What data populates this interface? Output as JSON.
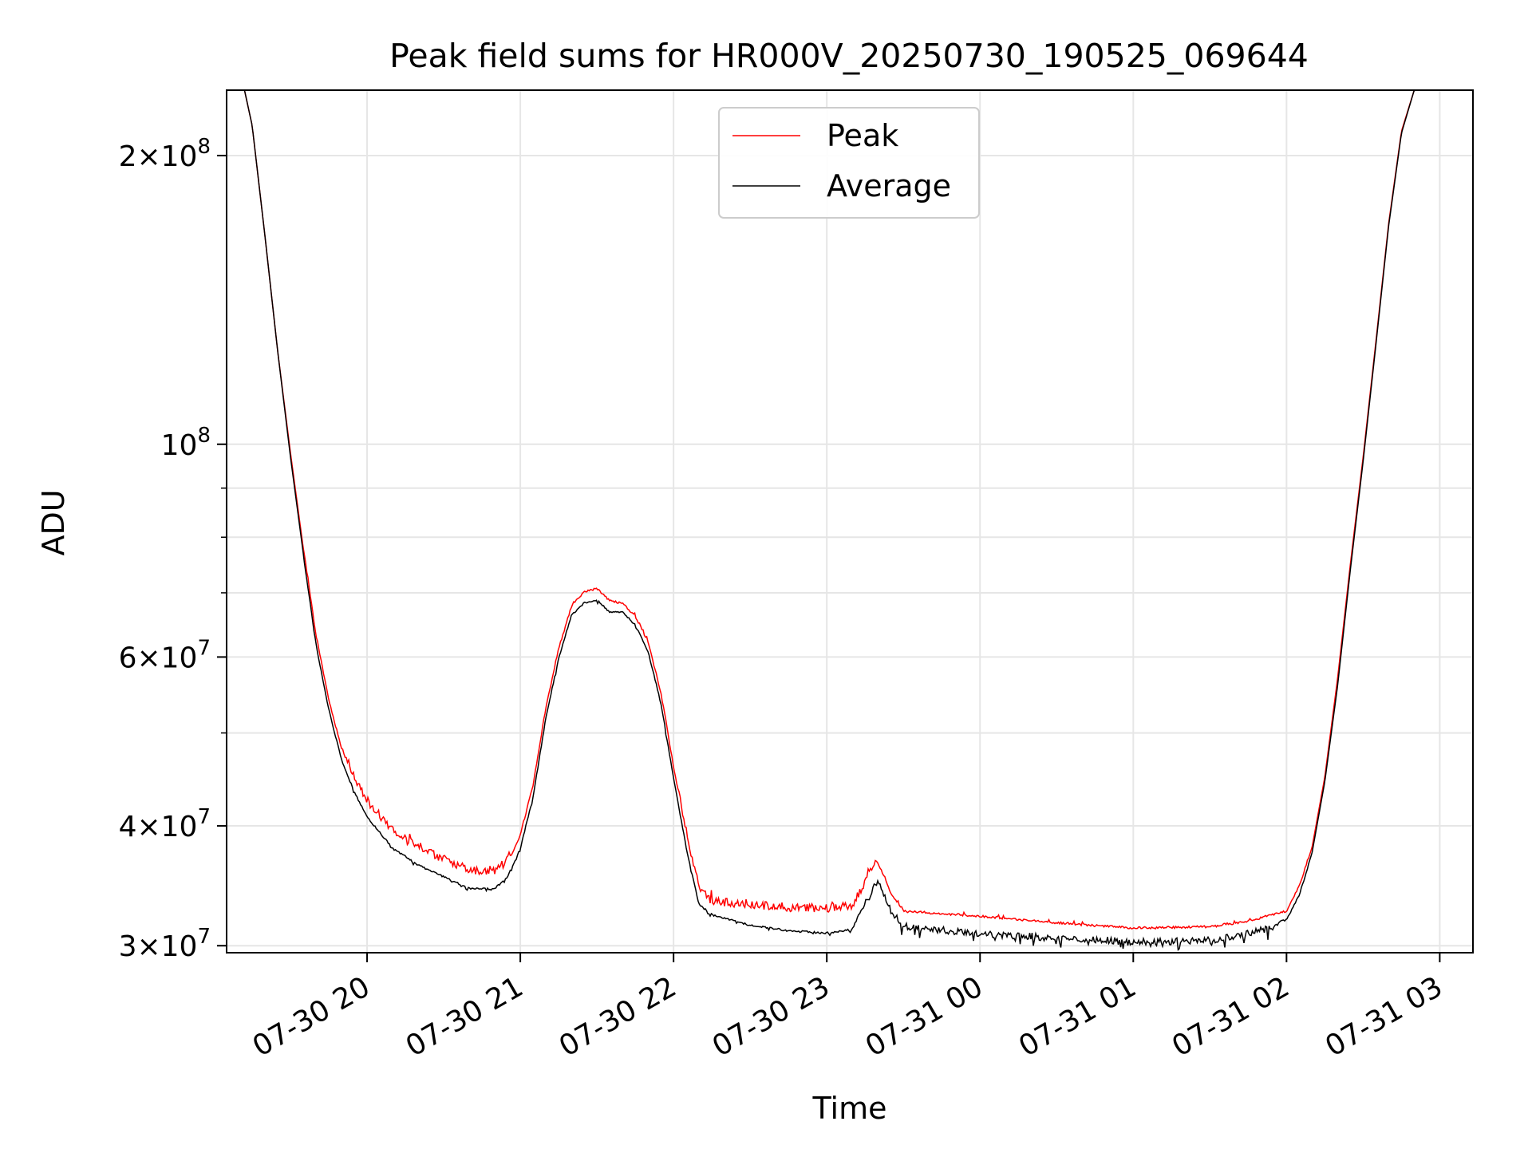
{
  "chart_data": {
    "type": "line",
    "title": "Peak field sums for HR000V_20250730_190525_069644",
    "xlabel": "Time",
    "ylabel": "ADU",
    "y_scale": "log",
    "ylim": [
      29500000,
      234000000
    ],
    "xlim": [
      "2025-07-30 19:05",
      "2025-07-31 03:13"
    ],
    "grid": true,
    "legend": {
      "position": "top-center",
      "entries": [
        "Peak",
        "Average"
      ]
    },
    "x_ticks": [
      {
        "t": "2025-07-30 20:00",
        "label": "07-30 20"
      },
      {
        "t": "2025-07-30 21:00",
        "label": "07-30 21"
      },
      {
        "t": "2025-07-30 22:00",
        "label": "07-30 22"
      },
      {
        "t": "2025-07-30 23:00",
        "label": "07-30 23"
      },
      {
        "t": "2025-07-31 00:00",
        "label": "07-31 00"
      },
      {
        "t": "2025-07-31 01:00",
        "label": "07-31 01"
      },
      {
        "t": "2025-07-31 02:00",
        "label": "07-31 02"
      },
      {
        "t": "2025-07-31 03:00",
        "label": "07-31 03"
      }
    ],
    "y_ticks": [
      {
        "v": 30000000,
        "mant": "3",
        "exp": "7"
      },
      {
        "v": 40000000,
        "mant": "4",
        "exp": "7"
      },
      {
        "v": 60000000,
        "mant": "6",
        "exp": "7"
      },
      {
        "v": 100000000,
        "mant": "",
        "exp": "8"
      },
      {
        "v": 200000000,
        "mant": "2",
        "exp": "8"
      }
    ],
    "y_minor_ticks": [
      50000000,
      70000000,
      80000000,
      90000000
    ],
    "series": [
      {
        "name": "Peak",
        "color": "#ff0000",
        "noise": "above",
        "points": [
          [
            "2025-07-30 19:05",
            234000000
          ],
          [
            "2025-07-30 19:12",
            234000000
          ],
          [
            "2025-07-30 19:15",
            215000000
          ],
          [
            "2025-07-30 19:20",
            165000000
          ],
          [
            "2025-07-30 19:25",
            125000000
          ],
          [
            "2025-07-30 19:30",
            98000000
          ],
          [
            "2025-07-30 19:35",
            78000000
          ],
          [
            "2025-07-30 19:40",
            63000000
          ],
          [
            "2025-07-30 19:45",
            54000000
          ],
          [
            "2025-07-30 19:50",
            48000000
          ],
          [
            "2025-07-30 19:55",
            44500000
          ],
          [
            "2025-07-30 20:00",
            42000000
          ],
          [
            "2025-07-30 20:10",
            39000000
          ],
          [
            "2025-07-30 20:20",
            37500000
          ],
          [
            "2025-07-30 20:30",
            36500000
          ],
          [
            "2025-07-30 20:40",
            35500000
          ],
          [
            "2025-07-30 20:50",
            35500000
          ],
          [
            "2025-07-30 20:55",
            36500000
          ],
          [
            "2025-07-30 21:00",
            39000000
          ],
          [
            "2025-07-30 21:05",
            44000000
          ],
          [
            "2025-07-30 21:10",
            53000000
          ],
          [
            "2025-07-30 21:15",
            61000000
          ],
          [
            "2025-07-30 21:20",
            67500000
          ],
          [
            "2025-07-30 21:25",
            70000000
          ],
          [
            "2025-07-30 21:30",
            70500000
          ],
          [
            "2025-07-30 21:35",
            68500000
          ],
          [
            "2025-07-30 21:40",
            68000000
          ],
          [
            "2025-07-30 21:45",
            66000000
          ],
          [
            "2025-07-30 21:50",
            62000000
          ],
          [
            "2025-07-30 21:55",
            55000000
          ],
          [
            "2025-07-30 22:00",
            46000000
          ],
          [
            "2025-07-30 22:05",
            39000000
          ],
          [
            "2025-07-30 22:10",
            34000000
          ],
          [
            "2025-07-30 22:15",
            33000000
          ],
          [
            "2025-07-30 22:30",
            32700000
          ],
          [
            "2025-07-30 22:45",
            32500000
          ],
          [
            "2025-07-30 23:00",
            32400000
          ],
          [
            "2025-07-30 23:10",
            32600000
          ],
          [
            "2025-07-30 23:15",
            34500000
          ],
          [
            "2025-07-30 23:20",
            36500000
          ],
          [
            "2025-07-30 23:25",
            34000000
          ],
          [
            "2025-07-30 23:30",
            32500000
          ],
          [
            "2025-07-31 00:00",
            32100000
          ],
          [
            "2025-07-31 00:30",
            31600000
          ],
          [
            "2025-07-31 01:00",
            31200000
          ],
          [
            "2025-07-31 01:30",
            31300000
          ],
          [
            "2025-07-31 01:45",
            31700000
          ],
          [
            "2025-07-31 02:00",
            32500000
          ],
          [
            "2025-07-31 02:05",
            34500000
          ],
          [
            "2025-07-31 02:10",
            38000000
          ],
          [
            "2025-07-31 02:15",
            45000000
          ],
          [
            "2025-07-31 02:20",
            57000000
          ],
          [
            "2025-07-31 02:25",
            75000000
          ],
          [
            "2025-07-31 02:30",
            97000000
          ],
          [
            "2025-07-31 02:35",
            128000000
          ],
          [
            "2025-07-31 02:40",
            170000000
          ],
          [
            "2025-07-31 02:45",
            212000000
          ],
          [
            "2025-07-31 02:50",
            234000000
          ],
          [
            "2025-07-31 03:13",
            234000000
          ]
        ]
      },
      {
        "name": "Average",
        "color": "#000000",
        "noise": "below",
        "points": [
          [
            "2025-07-30 19:05",
            234000000
          ],
          [
            "2025-07-30 19:12",
            234000000
          ],
          [
            "2025-07-30 19:15",
            215000000
          ],
          [
            "2025-07-30 19:20",
            165000000
          ],
          [
            "2025-07-30 19:25",
            125000000
          ],
          [
            "2025-07-30 19:30",
            97000000
          ],
          [
            "2025-07-30 19:35",
            77000000
          ],
          [
            "2025-07-30 19:40",
            62000000
          ],
          [
            "2025-07-30 19:45",
            53000000
          ],
          [
            "2025-07-30 19:50",
            47000000
          ],
          [
            "2025-07-30 19:55",
            43500000
          ],
          [
            "2025-07-30 20:00",
            41000000
          ],
          [
            "2025-07-30 20:10",
            38000000
          ],
          [
            "2025-07-30 20:20",
            36500000
          ],
          [
            "2025-07-30 20:30",
            35500000
          ],
          [
            "2025-07-30 20:40",
            34500000
          ],
          [
            "2025-07-30 20:50",
            34500000
          ],
          [
            "2025-07-30 20:55",
            35500000
          ],
          [
            "2025-07-30 21:00",
            38000000
          ],
          [
            "2025-07-30 21:05",
            43000000
          ],
          [
            "2025-07-30 21:10",
            52000000
          ],
          [
            "2025-07-30 21:15",
            60000000
          ],
          [
            "2025-07-30 21:20",
            66500000
          ],
          [
            "2025-07-30 21:25",
            68500000
          ],
          [
            "2025-07-30 21:30",
            69000000
          ],
          [
            "2025-07-30 21:35",
            67000000
          ],
          [
            "2025-07-30 21:40",
            67000000
          ],
          [
            "2025-07-30 21:45",
            65000000
          ],
          [
            "2025-07-30 21:50",
            61000000
          ],
          [
            "2025-07-30 21:55",
            54000000
          ],
          [
            "2025-07-30 22:00",
            45000000
          ],
          [
            "2025-07-30 22:05",
            38000000
          ],
          [
            "2025-07-30 22:10",
            33200000
          ],
          [
            "2025-07-30 22:15",
            32400000
          ],
          [
            "2025-07-30 22:30",
            31600000
          ],
          [
            "2025-07-30 22:45",
            31200000
          ],
          [
            "2025-07-30 23:00",
            31000000
          ],
          [
            "2025-07-30 23:10",
            31300000
          ],
          [
            "2025-07-30 23:15",
            33500000
          ],
          [
            "2025-07-30 23:20",
            35500000
          ],
          [
            "2025-07-30 23:25",
            33000000
          ],
          [
            "2025-07-30 23:30",
            31800000
          ],
          [
            "2025-07-31 00:00",
            31200000
          ],
          [
            "2025-07-31 00:30",
            30900000
          ],
          [
            "2025-07-31 01:00",
            30600000
          ],
          [
            "2025-07-31 01:30",
            30700000
          ],
          [
            "2025-07-31 01:45",
            31200000
          ],
          [
            "2025-07-31 02:00",
            32000000
          ],
          [
            "2025-07-31 02:05",
            34000000
          ],
          [
            "2025-07-31 02:10",
            37500000
          ],
          [
            "2025-07-31 02:15",
            44500000
          ],
          [
            "2025-07-31 02:20",
            56000000
          ],
          [
            "2025-07-31 02:25",
            74000000
          ],
          [
            "2025-07-31 02:30",
            96000000
          ],
          [
            "2025-07-31 02:35",
            127000000
          ],
          [
            "2025-07-31 02:40",
            169000000
          ],
          [
            "2025-07-31 02:45",
            211000000
          ],
          [
            "2025-07-31 02:50",
            234000000
          ],
          [
            "2025-07-31 03:13",
            234000000
          ]
        ]
      }
    ]
  }
}
